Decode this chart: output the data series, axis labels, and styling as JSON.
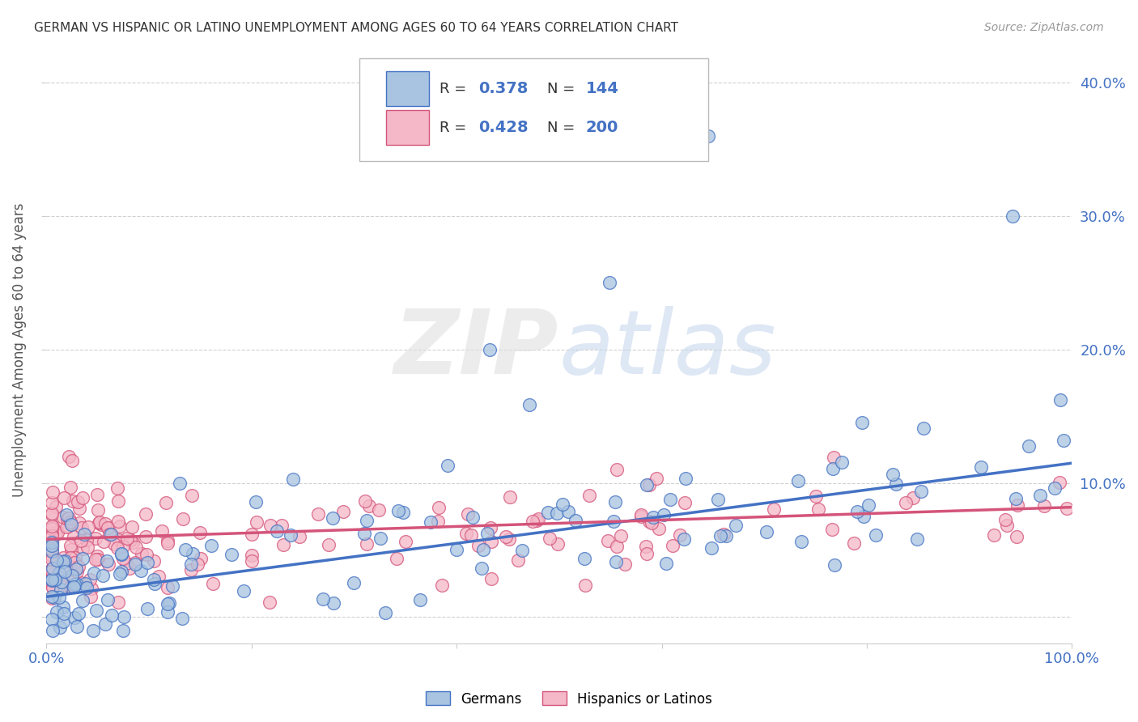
{
  "title": "GERMAN VS HISPANIC OR LATINO UNEMPLOYMENT AMONG AGES 60 TO 64 YEARS CORRELATION CHART",
  "source": "Source: ZipAtlas.com",
  "ylabel": "Unemployment Among Ages 60 to 64 years",
  "xlim": [
    0,
    1.0
  ],
  "ylim": [
    -0.02,
    0.42
  ],
  "german_R": 0.378,
  "german_N": 144,
  "hispanic_R": 0.428,
  "hispanic_N": 200,
  "german_color": "#a8c4e0",
  "german_line_color": "#4472c4",
  "hispanic_color": "#f4b8c8",
  "hispanic_line_color": "#d4547a",
  "legend_text_color": "#4472c4",
  "background_color": "#ffffff",
  "grid_color": "#cccccc",
  "title_color": "#333333",
  "tick_label_color": "#4472c4",
  "german_trend_x": [
    0.0,
    1.0
  ],
  "german_trend_y": [
    0.015,
    0.115
  ],
  "hispanic_trend_x": [
    0.0,
    1.0
  ],
  "hispanic_trend_y": [
    0.058,
    0.082
  ]
}
